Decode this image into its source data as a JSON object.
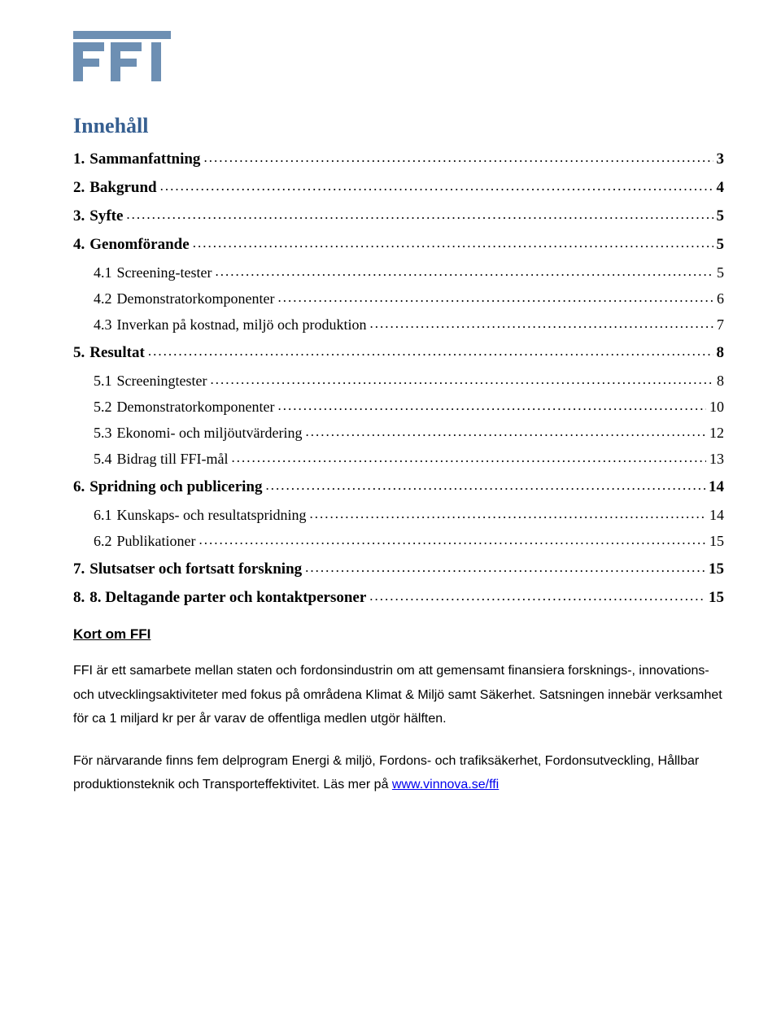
{
  "logo": {
    "text": "FFI",
    "bar_color": "#6d8fb3",
    "text_color": "#6d8fb3"
  },
  "heading": {
    "text": "Innehåll",
    "color": "#365f91",
    "fontsize": 26
  },
  "toc": {
    "entries": [
      {
        "level": 1,
        "num": "1.",
        "title": "Sammanfattning",
        "page": "3"
      },
      {
        "level": 1,
        "num": "2.",
        "title": "Bakgrund",
        "page": "4"
      },
      {
        "level": 1,
        "num": "3.",
        "title": "Syfte",
        "page": "5"
      },
      {
        "level": 1,
        "num": "4.",
        "title": "Genomförande",
        "page": "5"
      },
      {
        "level": 2,
        "num": "4.1",
        "title": "Screening-tester",
        "page": "5"
      },
      {
        "level": 2,
        "num": "4.2",
        "title": "Demonstratorkomponenter",
        "page": "6"
      },
      {
        "level": 2,
        "num": "4.3",
        "title": "Inverkan på kostnad, miljö och produktion",
        "page": "7"
      },
      {
        "level": 1,
        "num": "5.",
        "title": "Resultat",
        "page": "8"
      },
      {
        "level": 2,
        "num": "5.1",
        "title": "Screeningtester",
        "page": "8"
      },
      {
        "level": 2,
        "num": "5.2",
        "title": "Demonstratorkomponenter",
        "page": "10"
      },
      {
        "level": 2,
        "num": "5.3",
        "title": "Ekonomi- och miljöutvärdering",
        "page": "12"
      },
      {
        "level": 2,
        "num": "5.4",
        "title": "Bidrag till FFI-mål",
        "page": "13"
      },
      {
        "level": 1,
        "num": "6.",
        "title": "Spridning och publicering",
        "page": "14"
      },
      {
        "level": 2,
        "num": "6.1",
        "title": "Kunskaps- och resultatspridning",
        "page": "14"
      },
      {
        "level": 2,
        "num": "6.2",
        "title": "Publikationer",
        "page": "15"
      },
      {
        "level": 1,
        "num": "7.",
        "title": "Slutsatser och fortsatt forskning",
        "page": "15"
      },
      {
        "level": 1,
        "num": "8.",
        "title": "8. Deltagande parter och kontaktpersoner",
        "page": "15"
      }
    ]
  },
  "section2": {
    "heading": " Kort om FFI",
    "p1": "FFI är ett samarbete mellan staten och fordonsindustrin om att gemensamt finansiera forsknings-, innovations- och utvecklingsaktiviteter med fokus på områdena Klimat & Miljö samt Säkerhet. Satsningen innebär verksamhet för ca 1 miljard kr per år varav de offentliga medlen utgör hälften.",
    "p2_pre": "För närvarande finns fem delprogram Energi & miljö, Fordons- och trafiksäkerhet, Fordonsutveckling, Hållbar produktionsteknik och Transporteffektivitet. Läs mer på ",
    "p2_link_text": "www.vinnova.se/ffi",
    "p2_link_href": "http://www.vinnova.se/ffi"
  },
  "style": {
    "body_font": "Arial",
    "toc_font": "Times New Roman",
    "link_color": "#0000ee",
    "page_bg": "#ffffff",
    "text_color": "#000000"
  }
}
